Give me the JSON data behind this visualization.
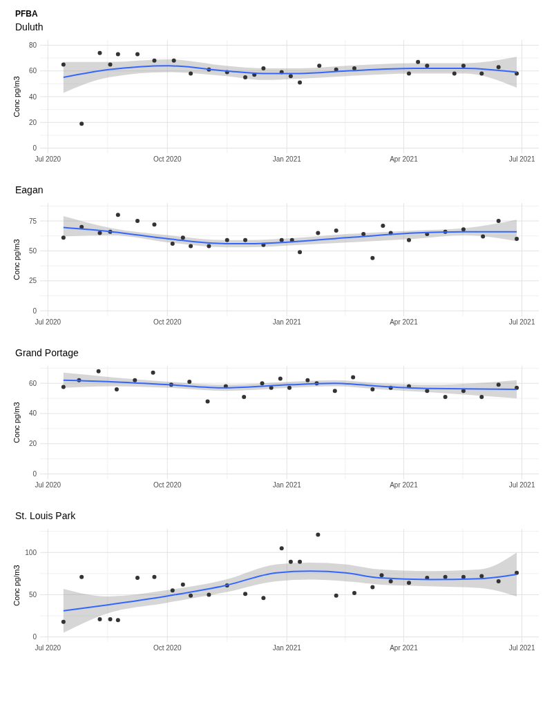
{
  "chart_data": [
    {
      "type": "scatter",
      "title": "PFBA",
      "subtitle": "Duluth",
      "ylabel": "Conc pg/m3",
      "xlim": [
        "2020-06-25",
        "2021-07-14"
      ],
      "ylim": [
        -4,
        84
      ],
      "yticks": [
        0,
        20,
        40,
        60,
        80
      ],
      "xticks": [
        {
          "value": "2020-07-01",
          "label": "Jul 2020"
        },
        {
          "value": "2020-10-01",
          "label": "Oct 2020"
        },
        {
          "value": "2021-01-01",
          "label": "Jan 2021"
        },
        {
          "value": "2021-04-01",
          "label": "Apr 2021"
        },
        {
          "value": "2021-07-01",
          "label": "Jul 2021"
        }
      ],
      "grid": true,
      "series": [
        {
          "color": "#333333",
          "marker": "circle",
          "x": [
            "2020-07-13",
            "2020-07-27",
            "2020-08-10",
            "2020-08-18",
            "2020-08-24",
            "2020-09-08",
            "2020-09-21",
            "2020-10-06",
            "2020-10-19",
            "2020-11-02",
            "2020-11-16",
            "2020-11-30",
            "2020-12-07",
            "2020-12-14",
            "2020-12-28",
            "2021-01-04",
            "2021-01-11",
            "2021-01-26",
            "2021-02-08",
            "2021-02-22",
            "2021-04-05",
            "2021-04-12",
            "2021-04-19",
            "2021-05-10",
            "2021-05-17",
            "2021-05-31",
            "2021-06-13",
            "2021-06-27"
          ],
          "values": [
            65,
            19,
            74,
            65,
            73,
            73,
            68,
            68,
            58,
            61,
            59,
            55,
            57,
            62,
            59,
            56,
            51,
            64,
            61,
            62,
            58,
            67,
            64,
            58,
            64,
            58,
            63,
            58
          ]
        },
        {
          "type": "line",
          "color": "#3366ff",
          "x": [
            "2020-07-13",
            "2020-08-17",
            "2020-10-02",
            "2020-11-15",
            "2020-12-14",
            "2021-01-11",
            "2021-02-16",
            "2021-04-09",
            "2021-05-18",
            "2021-06-27"
          ],
          "values": [
            55,
            61,
            64,
            60,
            58,
            58,
            60,
            62,
            62,
            59
          ],
          "lower": [
            43,
            55,
            59,
            56,
            53,
            54,
            56,
            58,
            58,
            47
          ],
          "upper": [
            67,
            67,
            69,
            64,
            62,
            62,
            64,
            66,
            66,
            71
          ]
        }
      ]
    },
    {
      "type": "scatter",
      "title": "Eagan",
      "ylabel": "Conc pg/m3",
      "xlim": [
        "2020-06-25",
        "2021-07-14"
      ],
      "ylim": [
        -4.5,
        90
      ],
      "yticks": [
        0,
        25,
        50,
        75
      ],
      "xticks": [
        {
          "value": "2020-07-01",
          "label": "Jul 2020"
        },
        {
          "value": "2020-10-01",
          "label": "Oct 2020"
        },
        {
          "value": "2021-01-01",
          "label": "Jan 2021"
        },
        {
          "value": "2021-04-01",
          "label": "Apr 2021"
        },
        {
          "value": "2021-07-01",
          "label": "Jul 2021"
        }
      ],
      "grid": true,
      "series": [
        {
          "color": "#333333",
          "marker": "circle",
          "x": [
            "2020-07-13",
            "2020-07-27",
            "2020-08-10",
            "2020-08-18",
            "2020-08-24",
            "2020-09-08",
            "2020-09-21",
            "2020-10-05",
            "2020-10-13",
            "2020-10-19",
            "2020-11-02",
            "2020-11-16",
            "2020-11-30",
            "2020-12-14",
            "2020-12-28",
            "2021-01-05",
            "2021-01-11",
            "2021-01-25",
            "2021-02-08",
            "2021-03-01",
            "2021-03-08",
            "2021-03-16",
            "2021-03-22",
            "2021-04-05",
            "2021-04-19",
            "2021-05-03",
            "2021-05-17",
            "2021-06-01",
            "2021-06-13",
            "2021-06-27"
          ],
          "values": [
            61,
            70,
            65,
            66,
            80,
            75,
            72,
            56,
            61,
            54,
            54,
            59,
            59,
            55,
            59,
            59,
            49,
            65,
            67,
            64,
            44,
            71,
            65,
            59,
            64,
            66,
            68,
            62,
            75,
            60
          ]
        },
        {
          "type": "line",
          "color": "#3366ff",
          "x": [
            "2020-07-13",
            "2020-08-19",
            "2020-10-02",
            "2020-11-15",
            "2020-12-01",
            "2021-01-11",
            "2021-02-16",
            "2021-04-09",
            "2021-05-18",
            "2021-06-27"
          ],
          "values": [
            69.5,
            66,
            60,
            56,
            56,
            58,
            61,
            65,
            66,
            66
          ],
          "lower": [
            62,
            63,
            57,
            53,
            53,
            55,
            57,
            60,
            63,
            58
          ],
          "upper": [
            79,
            69,
            63,
            59,
            59,
            61,
            64,
            67,
            69,
            76
          ]
        }
      ]
    },
    {
      "type": "scatter",
      "title": "Grand Portage",
      "ylabel": "Conc pg/m3",
      "xlim": [
        "2020-06-25",
        "2021-07-14"
      ],
      "ylim": [
        -3.4,
        71.5
      ],
      "yticks": [
        0,
        20,
        40,
        60
      ],
      "xticks": [
        {
          "value": "2020-07-01",
          "label": "Jul 2020"
        },
        {
          "value": "2020-10-01",
          "label": "Oct 2020"
        },
        {
          "value": "2021-01-01",
          "label": "Jan 2021"
        },
        {
          "value": "2021-04-01",
          "label": "Apr 2021"
        },
        {
          "value": "2021-07-01",
          "label": "Jul 2021"
        }
      ],
      "grid": true,
      "series": [
        {
          "color": "#333333",
          "marker": "circle",
          "x": [
            "2020-07-13",
            "2020-07-25",
            "2020-08-09",
            "2020-08-23",
            "2020-09-06",
            "2020-09-20",
            "2020-10-04",
            "2020-10-18",
            "2020-11-01",
            "2020-11-15",
            "2020-11-29",
            "2020-12-13",
            "2020-12-20",
            "2020-12-27",
            "2021-01-03",
            "2021-01-17",
            "2021-01-24",
            "2021-02-07",
            "2021-02-21",
            "2021-03-08",
            "2021-03-22",
            "2021-04-05",
            "2021-04-19",
            "2021-05-03",
            "2021-05-17",
            "2021-05-31",
            "2021-06-13",
            "2021-06-27"
          ],
          "values": [
            57.6,
            62,
            68,
            56,
            62,
            67,
            59,
            61,
            48,
            58,
            51,
            60,
            57,
            63,
            57,
            62,
            60,
            55,
            64,
            56,
            57,
            58,
            55,
            51,
            55,
            51,
            59,
            57
          ]
        },
        {
          "type": "line",
          "color": "#3366ff",
          "x": [
            "2020-07-13",
            "2020-08-19",
            "2020-10-02",
            "2020-11-15",
            "2021-01-03",
            "2021-02-07",
            "2021-03-14",
            "2021-04-22",
            "2021-06-27"
          ],
          "values": [
            62,
            61,
            59,
            57,
            59,
            60,
            58,
            56.5,
            56
          ],
          "lower": [
            57,
            58,
            57,
            55,
            57,
            58,
            56,
            54,
            50
          ],
          "upper": [
            67,
            64,
            61,
            59,
            61,
            62,
            60,
            59,
            62
          ]
        }
      ]
    },
    {
      "type": "scatter",
      "title": "St. Louis Park",
      "ylabel": "Conc pg/m3",
      "xlim": [
        "2020-06-25",
        "2021-07-14"
      ],
      "ylim": [
        -6,
        128
      ],
      "yticks": [
        0,
        50,
        100
      ],
      "xticks": [
        {
          "value": "2020-07-01",
          "label": "Jul 2020"
        },
        {
          "value": "2020-10-01",
          "label": "Oct 2020"
        },
        {
          "value": "2021-01-01",
          "label": "Jan 2021"
        },
        {
          "value": "2021-04-01",
          "label": "Apr 2021"
        },
        {
          "value": "2021-07-01",
          "label": "Jul 2021"
        }
      ],
      "grid": true,
      "series": [
        {
          "color": "#333333",
          "marker": "circle",
          "x": [
            "2020-07-13",
            "2020-07-27",
            "2020-08-10",
            "2020-08-18",
            "2020-08-24",
            "2020-09-08",
            "2020-09-21",
            "2020-10-05",
            "2020-10-13",
            "2020-10-19",
            "2020-11-02",
            "2020-11-16",
            "2020-11-30",
            "2020-12-14",
            "2020-12-28",
            "2021-01-04",
            "2021-01-11",
            "2021-01-25",
            "2021-02-08",
            "2021-02-22",
            "2021-03-08",
            "2021-03-15",
            "2021-03-22",
            "2021-04-05",
            "2021-04-19",
            "2021-05-03",
            "2021-05-17",
            "2021-05-31",
            "2021-06-13",
            "2021-06-27"
          ],
          "values": [
            18,
            71,
            21,
            21,
            20,
            70,
            71,
            55,
            62,
            49,
            50,
            61,
            51,
            46,
            105,
            89,
            89,
            121,
            49,
            52,
            59,
            73,
            66,
            64,
            70,
            71,
            71,
            72,
            66,
            76
          ]
        },
        {
          "type": "line",
          "color": "#3366ff",
          "x": [
            "2020-07-13",
            "2020-08-16",
            "2020-09-29",
            "2020-11-15",
            "2020-12-24",
            "2021-01-19",
            "2021-02-15",
            "2021-03-13",
            "2021-04-21",
            "2021-05-30",
            "2021-06-27"
          ],
          "values": [
            31,
            38,
            48,
            61,
            76,
            78,
            76,
            70,
            68,
            69,
            74
          ],
          "lower": [
            5,
            28,
            40,
            53,
            66,
            68,
            66,
            62,
            60,
            58,
            48
          ],
          "upper": [
            57,
            48,
            55,
            68,
            86,
            88,
            86,
            80,
            78,
            80,
            100
          ]
        }
      ]
    }
  ]
}
